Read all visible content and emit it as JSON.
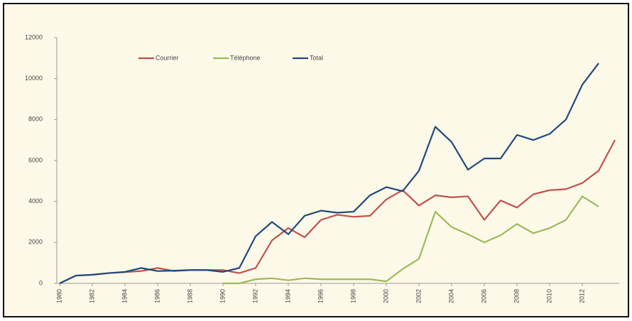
{
  "chart_data": {
    "type": "line",
    "x": [
      1980,
      1981,
      1982,
      1983,
      1984,
      1985,
      1986,
      1987,
      1988,
      1989,
      1990,
      1991,
      1992,
      1993,
      1994,
      1995,
      1996,
      1997,
      1998,
      1999,
      2000,
      2001,
      2002,
      2003,
      2004,
      2005,
      2006,
      2007,
      2008,
      2009,
      2010,
      2011,
      2012,
      2013,
      2014
    ],
    "series": [
      {
        "name": "Courrier",
        "color": "#c0504d",
        "values": [
          0,
          380,
          420,
          500,
          550,
          600,
          750,
          600,
          650,
          650,
          650,
          500,
          750,
          2100,
          2700,
          2250,
          3100,
          3350,
          3250,
          3300,
          4100,
          4550,
          3800,
          4300,
          4200,
          4250,
          3100,
          4050,
          3700,
          4350,
          4550,
          4600,
          4900,
          5500,
          7000
        ]
      },
      {
        "name": "Téléphone",
        "color": "#9bbb59",
        "values": [
          null,
          null,
          null,
          null,
          null,
          null,
          null,
          null,
          null,
          null,
          0,
          0,
          200,
          250,
          150,
          250,
          200,
          200,
          200,
          200,
          100,
          700,
          1200,
          3500,
          2750,
          2400,
          2000,
          2350,
          2900,
          2450,
          2700,
          3100,
          4250,
          3750,
          null
        ]
      },
      {
        "name": "Total",
        "color": "#1f497d",
        "values": [
          0,
          380,
          420,
          500,
          560,
          750,
          600,
          620,
          650,
          650,
          560,
          750,
          2300,
          3000,
          2400,
          3300,
          3550,
          3450,
          3500,
          4300,
          4700,
          4500,
          5500,
          7650,
          6900,
          5550,
          6100,
          6100,
          7250,
          7000,
          7300,
          8000,
          9700,
          10750,
          null
        ]
      }
    ],
    "xlim": [
      1980,
      2014
    ],
    "xticks": [
      1980,
      1982,
      1984,
      1986,
      1988,
      1990,
      1992,
      1994,
      1996,
      1998,
      2000,
      2002,
      2004,
      2006,
      2008,
      2010,
      2012
    ],
    "ylim": [
      0,
      12000
    ],
    "yticks": [
      0,
      2000,
      4000,
      6000,
      8000,
      10000,
      12000
    ]
  }
}
